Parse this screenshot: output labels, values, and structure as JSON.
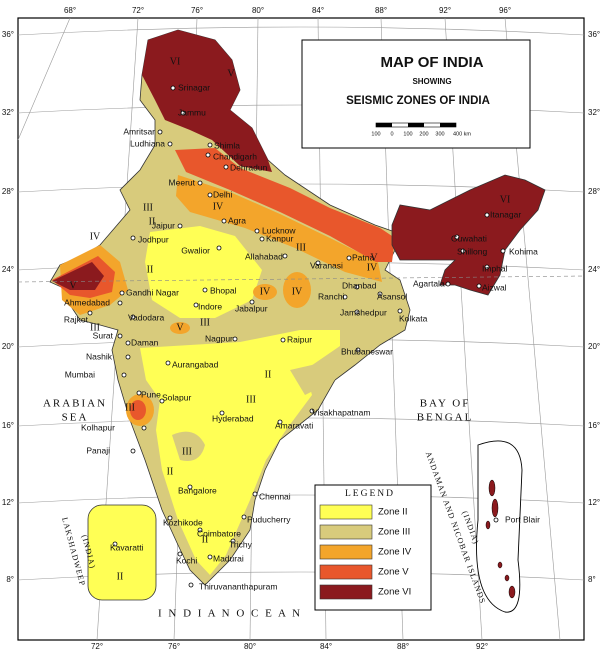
{
  "title": {
    "heading": "MAP OF INDIA",
    "showing": "SHOWING",
    "subheading": "SEISMIC ZONES OF INDIA"
  },
  "scale": {
    "ticks": [
      "100",
      "0",
      "100",
      "200",
      "300",
      "400 km"
    ]
  },
  "legend": {
    "title": "LEGEND",
    "items": [
      {
        "label": "Zone II",
        "color": "#ffff55"
      },
      {
        "label": "Zone III",
        "color": "#d8cb7c"
      },
      {
        "label": "Zone IV",
        "color": "#f3a52b"
      },
      {
        "label": "Zone V",
        "color": "#e8572c"
      },
      {
        "label": "Zone VI",
        "color": "#8b1a1e"
      }
    ]
  },
  "graticule": {
    "top": [
      "68°",
      "72°",
      "76°",
      "80°",
      "84°",
      "88°",
      "92°",
      "96°"
    ],
    "bottom": [
      "72°",
      "76°",
      "80°",
      "84°",
      "88°",
      "92°"
    ],
    "left": [
      "36°",
      "32°",
      "28°",
      "24°",
      "20°",
      "16°",
      "12°",
      "8°"
    ],
    "right": [
      "36°",
      "32°",
      "28°",
      "24°",
      "20°",
      "16°",
      "12°",
      "8°"
    ]
  },
  "seas": [
    "ARABIAN",
    "SEA",
    "BAY OF",
    "BENGAL",
    "I N D I A N   O C E A N",
    "LAKSHADWEEP",
    "(INDIA)",
    "ANDAMAN AND NICOBAR ISLANDS",
    "(INDIA)"
  ],
  "zone_marks": [
    "VI",
    "V",
    "IV",
    "III",
    "II",
    "IV",
    "V",
    "IV",
    "IV",
    "V",
    "III",
    "II",
    "III",
    "II",
    "III",
    "III",
    "II",
    "IV",
    "V",
    "III",
    "II",
    "III",
    "II",
    "VI"
  ],
  "places": [
    "Srinagar",
    "Jammu",
    "Amritsar",
    "Ludhiana",
    "Shimla",
    "Chandigarh",
    "Dehradun",
    "Meerut",
    "Delhi",
    "Jaipur",
    "Agra",
    "Lucknow",
    "Kanpur",
    "Jodhpur",
    "Gwalior",
    "Allahabad",
    "Varanasi",
    "Patna",
    "Gandhi Nagar",
    "Ahmedabad",
    "Bhopal",
    "Indore",
    "Rajkot",
    "Vadodara",
    "Jabalpur",
    "Dhanbad",
    "Ranchi",
    "Asansol",
    "Jamshedpur",
    "Kolkata",
    "Surat",
    "Daman",
    "Nagpur",
    "Raipur",
    "Bhubaneswar",
    "Nashik",
    "Aurangabad",
    "Mumbai",
    "Pune",
    "Solapur",
    "Kolhapur",
    "Hyderabad",
    "Amaravati",
    "Visakhapatnam",
    "Panaji",
    "Bangalore",
    "Chennai",
    "Kozhikode",
    "Coimbatore",
    "Puducherry",
    "Kochi",
    "Madurai",
    "Trichy",
    "Thiruvananthapuram",
    "Itanagar",
    "Guwahati",
    "Shillong",
    "Kohima",
    "Imphal",
    "Agartala",
    "Aizwal",
    "Port Blair",
    "Kavaratti"
  ]
}
